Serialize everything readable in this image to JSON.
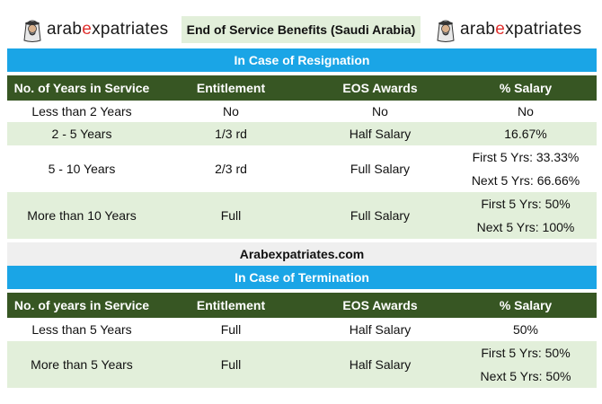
{
  "brand": {
    "logo_left": {
      "pre": "arab",
      "hl": "e",
      "post": "xpatriates"
    },
    "logo_right": {
      "pre": "arab",
      "hl": "e",
      "post": "xpatriates"
    },
    "accent_color": "#e0312f"
  },
  "title": "End of Service Benefits (Saudi Arabia)",
  "resignation": {
    "heading": "In Case of Resignation",
    "columns": [
      "No. of Years in Service",
      "Entitlement",
      "EOS Awards",
      "% Salary"
    ],
    "rows": [
      {
        "years": "Less than 2 Years",
        "entitlement": "No",
        "award": "No",
        "salary": [
          "No"
        ]
      },
      {
        "years": "2 - 5 Years",
        "entitlement": "1/3 rd",
        "award": "Half Salary",
        "salary": [
          "16.67%"
        ]
      },
      {
        "years": "5 - 10 Years",
        "entitlement": "2/3 rd",
        "award": "Full Salary",
        "salary": [
          "First 5 Yrs: 33.33%",
          "Next 5 Yrs: 66.66%"
        ]
      },
      {
        "years": "More than 10 Years",
        "entitlement": "Full",
        "award": "Full Salary",
        "salary": [
          "First 5 Yrs: 50%",
          "Next 5 Yrs: 100%"
        ]
      }
    ]
  },
  "site_label": "Arabexpatriates.com",
  "termination": {
    "heading": "In Case of Termination",
    "columns": [
      "No. of years in Service",
      "Entitlement",
      "EOS Awards",
      "% Salary"
    ],
    "rows": [
      {
        "years": "Less than 5 Years",
        "entitlement": "Full",
        "award": "Half Salary",
        "salary": [
          "50%"
        ]
      },
      {
        "years": "More than 5 Years",
        "entitlement": "Full",
        "award": "Half Salary",
        "salary": [
          "First 5 Yrs: 50%",
          "Next 5 Yrs: 50%"
        ]
      }
    ]
  },
  "colors": {
    "header_green": "#375623",
    "tint_green": "#e2efda",
    "banner_blue": "#1aa5e6"
  }
}
